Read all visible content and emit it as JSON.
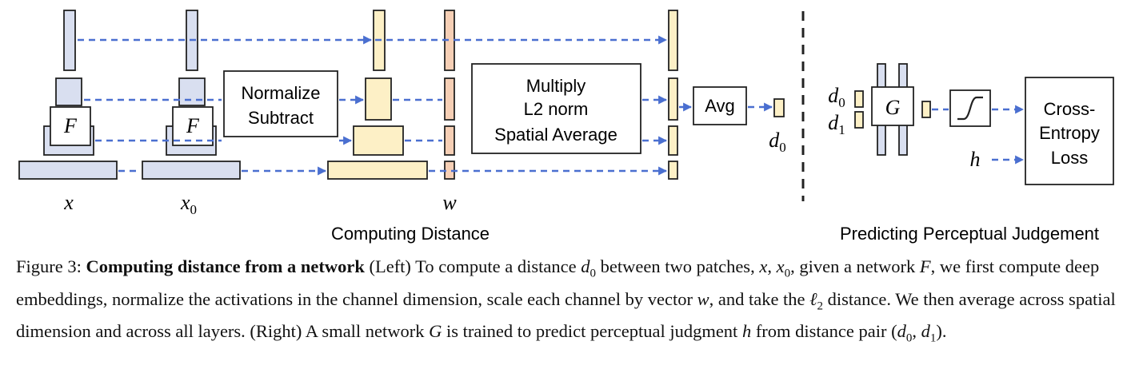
{
  "diagram": {
    "left_section_title": "Computing Distance",
    "right_section_title": "Predicting Perceptual Judgement",
    "normalize_line1": "Normalize",
    "normalize_line2": "Subtract",
    "multiply_line1": "Multiply",
    "multiply_line2": "L2 norm",
    "multiply_line3": "Spatial Average",
    "avg_label": "Avg",
    "cross_entropy_line1": "Cross-",
    "cross_entropy_line2": "Entropy",
    "cross_entropy_line3": "Loss",
    "network_f_label": "F",
    "network_g_label": "G",
    "var_x": "x",
    "var_x0": "x",
    "var_x0_sub": "0",
    "var_w": "w",
    "var_d0": "d",
    "var_d0_sub": "0",
    "var_d1": "d",
    "var_d1_sub": "1",
    "var_h": "h",
    "colors": {
      "feature_blue": "#d9dff0",
      "feature_yellow": "#fdf0c6",
      "feature_orange": "#f6cfb5",
      "arrow_blue": "#4a6fd0"
    }
  },
  "caption": {
    "figure_label": "Figure 3:",
    "title": "Computing distance from a network",
    "part1": "(Left) To compute a distance",
    "d0": "d",
    "d0_sub": "0",
    "part2": "between two patches,",
    "x": "x",
    "comma1": ",",
    "x0": "x",
    "x0_sub": "0",
    "part3": ", given a network",
    "net_f": "F",
    "part4": ", we first compute deep embeddings, normalize the activations in the channel dimension, scale each channel by vector",
    "w": "w",
    "part5": ",",
    "part6": "and take the",
    "ell": "ℓ",
    "ell_sub": "2",
    "part7": "distance. We then average across spatial dimension and across all layers. (Right) A small network",
    "net_g": "G",
    "part8": "is trained",
    "part9": "to predict perceptual judgment",
    "h": "h",
    "part10": "from distance pair (",
    "pd0": "d",
    "pd0_sub": "0",
    "pcomma": ",",
    "pd1": "d",
    "pd1_sub": "1",
    "part11": ")."
  }
}
